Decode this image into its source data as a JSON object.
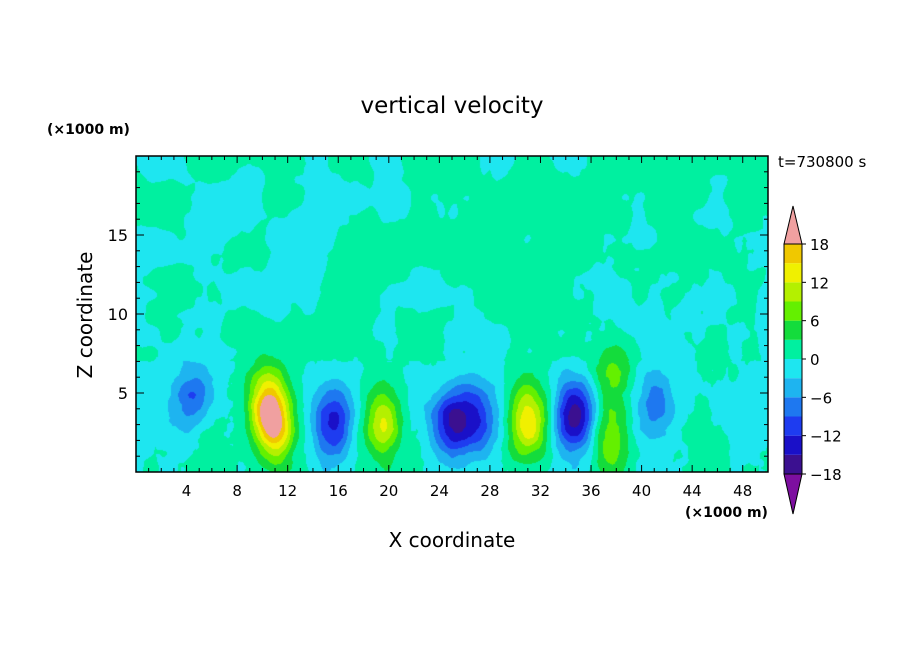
{
  "chart_data": {
    "type": "heatmap",
    "title": "vertical velocity",
    "xlabel": "X coordinate",
    "ylabel": "Z coordinate",
    "x_unit_label": "(×1000 m)",
    "y_unit_label": "(×1000 m)",
    "time_label": "t=730800 s",
    "xlim": [
      0,
      50
    ],
    "ylim": [
      0,
      20
    ],
    "x_ticks": [
      4,
      8,
      12,
      16,
      20,
      24,
      28,
      32,
      36,
      40,
      44,
      48
    ],
    "y_ticks": [
      5,
      10,
      15
    ],
    "colorbar": {
      "min": -21,
      "max": 21,
      "step": 3,
      "tick_values": [
        18,
        12,
        6,
        0,
        -6,
        -12,
        -18
      ],
      "tick_labels": [
        "18",
        "12",
        "6",
        "0",
        "−6",
        "−12",
        "−18"
      ],
      "colors": [
        "#7d0fa0",
        "#3b1090",
        "#1a10c8",
        "#1e3cf0",
        "#1e78f0",
        "#1eb4f0",
        "#1ee6f0",
        "#00f0a0",
        "#14dc3c",
        "#64f000",
        "#b4f000",
        "#f0f000",
        "#f0c800",
        "#f0a000",
        "#f07800",
        "#f04600",
        "#f01414",
        "#f0a0a0"
      ]
    },
    "field_features": [
      {
        "x": 4.5,
        "z": 4.5,
        "w": -8
      },
      {
        "x": 5.5,
        "z": 2.2,
        "w": 3
      },
      {
        "x": 10.3,
        "z": 4.3,
        "w": 16
      },
      {
        "x": 11.2,
        "z": 2.8,
        "w": 14
      },
      {
        "x": 15.5,
        "z": 3.0,
        "w": -12
      },
      {
        "x": 19.5,
        "z": 3.2,
        "w": 13
      },
      {
        "x": 25.0,
        "z": 3.0,
        "w": -13
      },
      {
        "x": 27.0,
        "z": 3.5,
        "w": -10
      },
      {
        "x": 31.0,
        "z": 3.3,
        "w": 16
      },
      {
        "x": 34.8,
        "z": 3.5,
        "w": -16
      },
      {
        "x": 37.5,
        "z": 2.0,
        "w": 9
      },
      {
        "x": 37.7,
        "z": 6.2,
        "w": 7
      },
      {
        "x": 41.0,
        "z": 4.5,
        "w": -6
      },
      {
        "x": 44.5,
        "z": 2.5,
        "w": 2
      }
    ]
  }
}
